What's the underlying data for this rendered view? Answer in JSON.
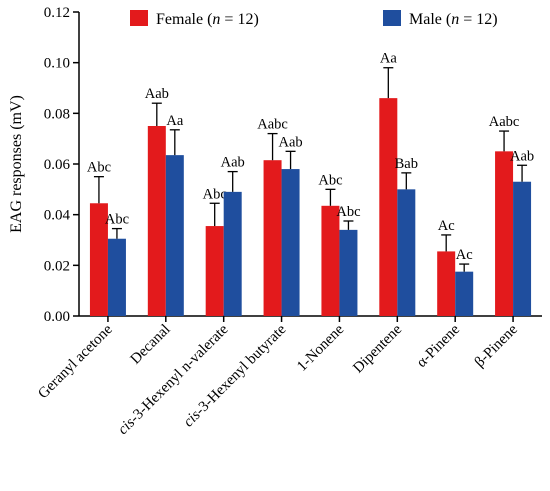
{
  "chart_data": {
    "type": "bar",
    "ylabel": "EAG responses (mV)",
    "ylim": [
      0,
      0.12
    ],
    "yticks": [
      "0.00",
      "0.02",
      "0.04",
      "0.06",
      "0.08",
      "0.10",
      "0.12"
    ],
    "categories": [
      {
        "pre": "",
        "italic": "",
        "post": "Geranyl acetone"
      },
      {
        "pre": "",
        "italic": "",
        "post": "Decanal"
      },
      {
        "pre": "",
        "italic": "cis",
        "post": "-3-Hexenyl n-valerate"
      },
      {
        "pre": "",
        "italic": "cis",
        "post": "-3-Hexenyl butyrate"
      },
      {
        "pre": "",
        "italic": "",
        "post": "1-Nonene"
      },
      {
        "pre": "",
        "italic": "",
        "post": "Dipentene"
      },
      {
        "pre": "",
        "italic": "",
        "post": "α-Pinene"
      },
      {
        "pre": "",
        "italic": "",
        "post": "β-Pinene"
      }
    ],
    "series": [
      {
        "name": "Female (n = 12)",
        "legend": {
          "pre": "Female (",
          "italic": "n",
          "post": " = 12)"
        },
        "color": "#e31a1c",
        "values": [
          0.0445,
          0.075,
          0.0355,
          0.0615,
          0.0435,
          0.086,
          0.0255,
          0.065
        ],
        "errors": [
          0.0105,
          0.009,
          0.009,
          0.0105,
          0.0065,
          0.012,
          0.0065,
          0.008
        ],
        "labels": [
          "Abc",
          "Aab",
          "Abc",
          "Aabc",
          "Abc",
          "Aa",
          "Ac",
          "Aabc"
        ]
      },
      {
        "name": "Male (n = 12)",
        "legend": {
          "pre": "Male (",
          "italic": "n",
          "post": " = 12)"
        },
        "color": "#1f4e9e",
        "values": [
          0.0305,
          0.0635,
          0.049,
          0.058,
          0.034,
          0.05,
          0.0175,
          0.053
        ],
        "errors": [
          0.004,
          0.01,
          0.008,
          0.007,
          0.0035,
          0.0065,
          0.003,
          0.0065
        ],
        "labels": [
          "Abc",
          "Aa",
          "Aab",
          "Aab",
          "Abc",
          "Bab",
          "Ac",
          "Aab"
        ]
      }
    ],
    "grid": false,
    "legend_position": "top"
  }
}
